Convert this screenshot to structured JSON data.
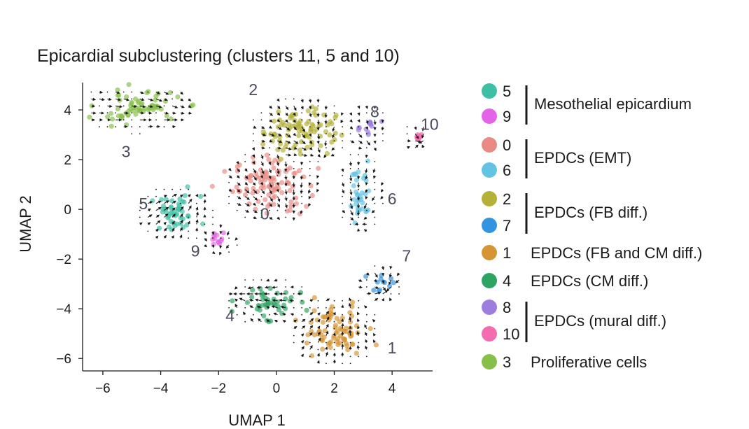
{
  "chart_data": {
    "type": "scatter",
    "title": "Epicardial subclustering (clusters 11, 5 and 10)",
    "xlabel": "UMAP 1",
    "ylabel": "UMAP 2",
    "xlim": [
      -6.7,
      5.4
    ],
    "ylim": [
      -6.5,
      5.1
    ],
    "xticks": [
      "−6",
      "−4",
      "−2",
      "0",
      "2",
      "4"
    ],
    "xtick_values": [
      -6,
      -4,
      -2,
      0,
      2,
      4
    ],
    "yticks": [
      "4",
      "2",
      "0",
      "−2",
      "−4",
      "−6"
    ],
    "ytick_values": [
      4,
      2,
      0,
      -2,
      -4,
      -6
    ],
    "grid": false,
    "overlay": "velocity-arrows",
    "clusters": [
      {
        "id": "5",
        "color": "#3cbfa5",
        "center": [
          -3.5,
          -0.2
        ],
        "spread": [
          0.7,
          0.6
        ],
        "label_pos": [
          -4.6,
          0.0
        ]
      },
      {
        "id": "9",
        "color": "#e463e8",
        "center": [
          -2.0,
          -1.2
        ],
        "spread": [
          0.2,
          0.2
        ],
        "label_pos": [
          -2.8,
          -1.9
        ]
      },
      {
        "id": "0",
        "color": "#ea8a84",
        "center": [
          -0.2,
          1.0
        ],
        "spread": [
          1.0,
          0.9
        ],
        "label_pos": [
          -0.4,
          -0.4
        ]
      },
      {
        "id": "6",
        "color": "#62c3e3",
        "center": [
          2.9,
          0.7
        ],
        "spread": [
          0.3,
          1.0
        ],
        "label_pos": [
          4.0,
          0.2
        ]
      },
      {
        "id": "2",
        "color": "#b4b136",
        "center": [
          0.8,
          3.2
        ],
        "spread": [
          1.0,
          0.8
        ],
        "label_pos": [
          -0.8,
          4.6
        ]
      },
      {
        "id": "7",
        "color": "#3294e0",
        "center": [
          3.6,
          -3.0
        ],
        "spread": [
          0.3,
          0.3
        ],
        "label_pos": [
          4.5,
          -2.1
        ]
      },
      {
        "id": "1",
        "color": "#d69534",
        "center": [
          2.0,
          -4.9
        ],
        "spread": [
          0.9,
          0.8
        ],
        "label_pos": [
          4.0,
          -5.8
        ]
      },
      {
        "id": "4",
        "color": "#2ea463",
        "center": [
          -0.3,
          -3.7
        ],
        "spread": [
          0.8,
          0.5
        ],
        "label_pos": [
          -1.6,
          -4.5
        ]
      },
      {
        "id": "8",
        "color": "#9d7de0",
        "center": [
          3.1,
          3.3
        ],
        "spread": [
          0.3,
          0.4
        ],
        "label_pos": [
          3.4,
          3.7
        ]
      },
      {
        "id": "10",
        "color": "#f56bb0",
        "center": [
          4.9,
          2.9
        ],
        "spread": [
          0.1,
          0.1
        ],
        "label_pos": [
          5.3,
          3.2
        ]
      },
      {
        "id": "3",
        "color": "#86c04a",
        "center": [
          -4.8,
          4.1
        ],
        "spread": [
          1.2,
          0.5
        ],
        "label_pos": [
          -5.2,
          2.1
        ]
      }
    ],
    "legend": {
      "placement": "right",
      "entries": [
        {
          "id": "5",
          "color": "#3cbfa5"
        },
        {
          "id": "9",
          "color": "#e463e8"
        },
        {
          "id": "0",
          "color": "#ea8a84"
        },
        {
          "id": "6",
          "color": "#62c3e3"
        },
        {
          "id": "2",
          "color": "#b4b136"
        },
        {
          "id": "7",
          "color": "#3294e0"
        },
        {
          "id": "1",
          "color": "#d69534"
        },
        {
          "id": "4",
          "color": "#2ea463"
        },
        {
          "id": "8",
          "color": "#9d7de0"
        },
        {
          "id": "10",
          "color": "#f56bb0"
        },
        {
          "id": "3",
          "color": "#86c04a"
        }
      ],
      "groups": [
        {
          "label": "Mesothelial epicardium",
          "members": [
            "5",
            "9"
          ],
          "bracket": true
        },
        {
          "label": "EPDCs (EMT)",
          "members": [
            "0",
            "6"
          ],
          "bracket": true
        },
        {
          "label": "EPDCs (FB diff.)",
          "members": [
            "2",
            "7"
          ],
          "bracket": true
        },
        {
          "label": "EPDCs (FB and CM diff.)",
          "members": [
            "1"
          ],
          "bracket": false
        },
        {
          "label": "EPDCs (CM diff.)",
          "members": [
            "4"
          ],
          "bracket": false
        },
        {
          "label": "EPDCs (mural diff.)",
          "members": [
            "8",
            "10"
          ],
          "bracket": true
        },
        {
          "label": "Proliferative cells",
          "members": [
            "3"
          ],
          "bracket": false
        }
      ]
    }
  }
}
